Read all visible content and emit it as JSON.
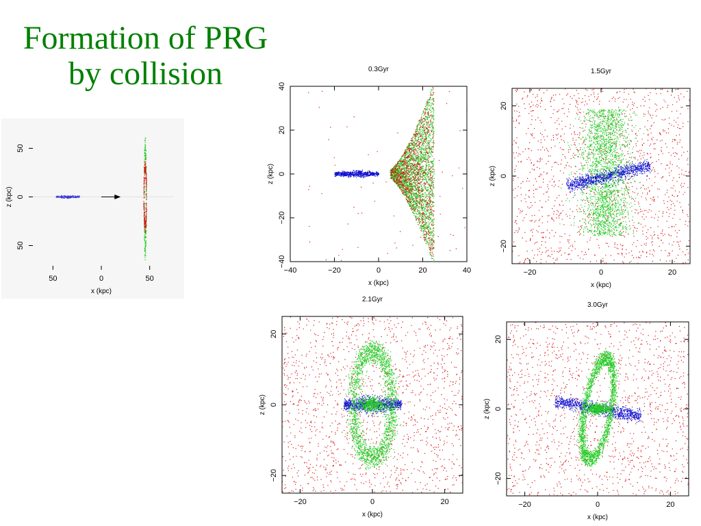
{
  "slide": {
    "title_line1": "Formation of PRG",
    "title_line2": "by collision"
  },
  "colors": {
    "title": "#008000",
    "blue_particles": "#1010d0",
    "green_particles": "#22cc22",
    "red_particles": "#dd1111",
    "arrow": "#000000"
  },
  "chart_data": [
    {
      "id": "initial",
      "type": "scatter",
      "title": "",
      "xlabel": "x (kpc)",
      "ylabel": "z (kpc)",
      "xlim": [
        -75,
        75
      ],
      "ylim": [
        -75,
        75
      ],
      "xticks": [
        -50,
        0,
        50
      ],
      "xtick_labels": [
        "50",
        "0",
        "50"
      ],
      "yticks": [
        50,
        0,
        -50
      ],
      "ytick_labels": [
        "50",
        "0",
        "50"
      ],
      "series": [
        {
          "name": "",
          "color": "#1010d0",
          "shape": "disk",
          "center": [
            -35,
            0
          ],
          "half_extent": [
            12,
            1.2
          ],
          "count": 220
        },
        {
          "name": "",
          "color": "#22cc22",
          "shape": "ring",
          "center": [
            45,
            0
          ],
          "half_extent": [
            1.2,
            58
          ],
          "count": 260
        },
        {
          "name": "",
          "color": "#dd1111",
          "shape": "ring",
          "center": [
            45,
            0
          ],
          "half_extent": [
            1.4,
            34
          ],
          "count": 260
        }
      ],
      "annotations": [
        {
          "type": "arrow",
          "from": [
            0,
            0
          ],
          "to": [
            20,
            0
          ]
        }
      ]
    },
    {
      "id": "t03",
      "type": "scatter",
      "title": "0.3Gyr",
      "xlabel": "x (kpc)",
      "ylabel": "z (kpc)",
      "xlim": [
        -40,
        40
      ],
      "ylim": [
        -40,
        40
      ],
      "xticks": [
        -40,
        -20,
        0,
        20,
        40
      ],
      "xtick_labels": [
        "−40",
        "−20",
        "0",
        "20",
        "40"
      ],
      "yticks": [
        -40,
        -20,
        0,
        20,
        40
      ],
      "ytick_labels": [
        "−40",
        "−20",
        "0",
        "20",
        "40"
      ],
      "series": [
        {
          "name": "",
          "color": "#1010d0",
          "shape": "disk",
          "center": [
            -10,
            0
          ],
          "half_extent": [
            10,
            1.5
          ],
          "count": 600
        },
        {
          "name": "",
          "color": "#22cc22",
          "shape": "cone",
          "center": [
            5,
            0
          ],
          "half_extent": [
            20,
            40
          ],
          "count": 2600
        },
        {
          "name": "",
          "color": "#dd1111",
          "shape": "cone",
          "center": [
            5,
            0
          ],
          "half_extent": [
            20,
            40
          ],
          "count": 1100
        },
        {
          "name": "",
          "color": "#dd1111",
          "shape": "field",
          "center": [
            0,
            0
          ],
          "half_extent": [
            40,
            40
          ],
          "count": 60
        }
      ]
    },
    {
      "id": "t15",
      "type": "scatter",
      "title": "1.5Gyr",
      "xlabel": "x (kpc)",
      "ylabel": "z (kpc)",
      "xlim": [
        -25,
        25
      ],
      "ylim": [
        -25,
        25
      ],
      "xticks": [
        -20,
        0,
        20
      ],
      "xtick_labels": [
        "−20",
        "0",
        "20"
      ],
      "yticks": [
        -20,
        0,
        20
      ],
      "ytick_labels": [
        "−20",
        "0",
        "20"
      ],
      "series": [
        {
          "name": "",
          "color": "#dd1111",
          "shape": "field",
          "center": [
            0,
            0
          ],
          "half_extent": [
            25,
            25
          ],
          "count": 1400
        },
        {
          "name": "",
          "color": "#22cc22",
          "shape": "blob",
          "center": [
            1,
            1
          ],
          "half_extent": [
            7,
            18
          ],
          "count": 2200
        },
        {
          "name": "",
          "color": "#1010d0",
          "shape": "tilted-disk",
          "center": [
            2,
            0
          ],
          "half_extent": [
            12,
            1.5
          ],
          "angle_deg": 14,
          "count": 900
        }
      ]
    },
    {
      "id": "t21",
      "type": "scatter",
      "title": "2.1Gyr",
      "xlabel": "x (kpc)",
      "ylabel": "z (kpc)",
      "xlim": [
        -25,
        25
      ],
      "ylim": [
        -25,
        25
      ],
      "xticks": [
        -20,
        0,
        20
      ],
      "xtick_labels": [
        "−20",
        "0",
        "20"
      ],
      "yticks": [
        -20,
        0,
        20
      ],
      "ytick_labels": [
        "−20",
        "0",
        "20"
      ],
      "series": [
        {
          "name": "",
          "color": "#dd1111",
          "shape": "field",
          "center": [
            0,
            0
          ],
          "half_extent": [
            25,
            25
          ],
          "count": 1400
        },
        {
          "name": "",
          "color": "#1010d0",
          "shape": "disk",
          "center": [
            0,
            0
          ],
          "half_extent": [
            8,
            2.5
          ],
          "count": 900
        },
        {
          "name": "",
          "color": "#22cc22",
          "shape": "ring",
          "center": [
            0,
            0
          ],
          "half_extent": [
            6,
            17
          ],
          "count": 2000
        },
        {
          "name": "",
          "color": "#22cc22",
          "shape": "core",
          "center": [
            0,
            0
          ],
          "half_extent": [
            4,
            2
          ],
          "count": 500
        }
      ]
    },
    {
      "id": "t30",
      "type": "scatter",
      "title": "3.0Gyr",
      "xlabel": "x (kpc)",
      "ylabel": "z (kpc)",
      "xlim": [
        -25,
        25
      ],
      "ylim": [
        -25,
        25
      ],
      "xticks": [
        -20,
        0,
        20
      ],
      "xtick_labels": [
        "−20",
        "0",
        "20"
      ],
      "yticks": [
        -20,
        0,
        20
      ],
      "ytick_labels": [
        "−20",
        "0",
        "20"
      ],
      "series": [
        {
          "name": "",
          "color": "#dd1111",
          "shape": "field",
          "center": [
            0,
            0
          ],
          "half_extent": [
            25,
            25
          ],
          "count": 1400
        },
        {
          "name": "",
          "color": "#1010d0",
          "shape": "tilted-disk",
          "center": [
            0,
            0
          ],
          "half_extent": [
            12,
            1.5
          ],
          "angle_deg": -11,
          "count": 900
        },
        {
          "name": "",
          "color": "#22cc22",
          "shape": "tilted-ring",
          "center": [
            0,
            0
          ],
          "half_extent": [
            4,
            16
          ],
          "angle_deg": 9,
          "count": 2000
        },
        {
          "name": "",
          "color": "#22cc22",
          "shape": "core",
          "center": [
            0,
            0
          ],
          "half_extent": [
            3,
            1.5
          ],
          "count": 500
        }
      ]
    }
  ]
}
